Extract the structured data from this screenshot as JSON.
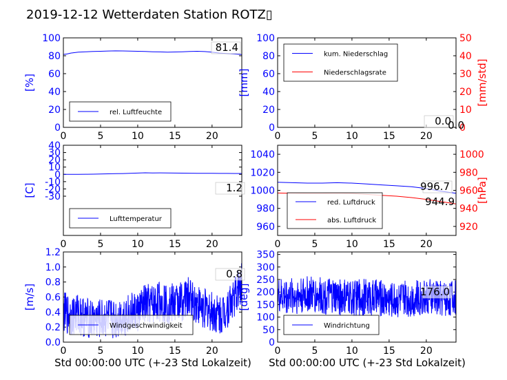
{
  "title": "2019-12-12 Wetterdaten Station ROTZ▯",
  "colors": {
    "primary": "#0000ff",
    "secondary": "#ff0000"
  },
  "xlabel": "Std 00:00:00 UTC (+-23 Std Lokalzeit)",
  "chart_data": [
    {
      "id": "humidity",
      "type": "line",
      "xlim": [
        0,
        24
      ],
      "xticks": [
        0,
        5,
        10,
        15,
        20
      ],
      "ylim": [
        0,
        100
      ],
      "yticks": [
        0,
        20,
        40,
        60,
        80,
        100
      ],
      "ylabel": "[%]",
      "series": [
        {
          "name": "rel. Luftfeuchte",
          "color": "#0000ff",
          "x": [
            0,
            0.5,
            1,
            2,
            3,
            4,
            5,
            6,
            7,
            8,
            9,
            10,
            11,
            12,
            13,
            14,
            15,
            16,
            17,
            18,
            19,
            20,
            21,
            22,
            23,
            24
          ],
          "y": [
            81.5,
            82,
            83,
            84,
            84.5,
            84.8,
            85,
            85.3,
            85.5,
            85.4,
            85.2,
            85,
            84.8,
            84.5,
            84.3,
            84,
            84.2,
            84.5,
            84.8,
            85,
            84.7,
            84,
            83,
            82.5,
            82,
            81.4
          ]
        }
      ],
      "annotation": "81.4"
    },
    {
      "id": "precip",
      "type": "line",
      "xlim": [
        0,
        24
      ],
      "xticks": [
        0,
        5,
        10,
        15,
        20
      ],
      "ylim": [
        0,
        100
      ],
      "yticks": [
        0,
        20,
        40,
        60,
        80,
        100
      ],
      "ylabel": "[mm]",
      "y2lim": [
        0,
        50
      ],
      "y2ticks": [
        0,
        10,
        20,
        30,
        40,
        50
      ],
      "y2label": "[mm/std]",
      "series": [
        {
          "name": "kum. Niederschlag",
          "color": "#0000ff",
          "axis": "left",
          "x": [
            0,
            24
          ],
          "y": [
            0,
            0
          ]
        },
        {
          "name": "Niederschlagsrate",
          "color": "#ff0000",
          "axis": "right",
          "x": [
            0,
            24
          ],
          "y": [
            0,
            0
          ]
        }
      ],
      "annotation": "0.0",
      "annotation2": "0.0"
    },
    {
      "id": "temperature",
      "type": "line",
      "xlim": [
        0,
        24
      ],
      "xticks": [
        0,
        5,
        10,
        15,
        20
      ],
      "ylim": [
        -30,
        40
      ],
      "yticks": [
        -30,
        -20,
        -10,
        0,
        10,
        20,
        30,
        40
      ],
      "ylabel": "[C]",
      "series": [
        {
          "name": "Lufttemperatur",
          "color": "#0000ff",
          "x": [
            0,
            1,
            2,
            3,
            4,
            5,
            6,
            7,
            8,
            9,
            10,
            11,
            12,
            13,
            14,
            15,
            16,
            17,
            18,
            19,
            20,
            21,
            22,
            23,
            24
          ],
          "y": [
            0,
            0,
            0.1,
            0.2,
            0.3,
            0.5,
            0.7,
            0.9,
            1.1,
            1.4,
            1.8,
            2.2,
            2.0,
            2.1,
            2.0,
            1.8,
            1.7,
            1.6,
            1.5,
            1.4,
            1.4,
            1.3,
            1.3,
            1.2,
            1.2
          ]
        }
      ],
      "annotation": "1.2"
    },
    {
      "id": "pressure",
      "type": "line",
      "xlim": [
        0,
        24
      ],
      "xticks": [
        0,
        5,
        10,
        15,
        20
      ],
      "ylim": [
        950,
        1050
      ],
      "yticks": [
        960,
        980,
        1000,
        1020,
        1040
      ],
      "ylabel": "",
      "y2lim": [
        910,
        1010
      ],
      "y2ticks": [
        920,
        940,
        960,
        980,
        1000
      ],
      "y2label": "[hPa]",
      "series": [
        {
          "name": "red. Luftdruck",
          "color": "#0000ff",
          "axis": "left",
          "x": [
            0,
            2,
            4,
            6,
            8,
            10,
            12,
            14,
            16,
            18,
            20,
            22,
            24
          ],
          "y": [
            1009,
            1008.5,
            1008,
            1008,
            1008.5,
            1008,
            1007,
            1006,
            1005,
            1004,
            1002,
            999,
            996.7
          ]
        },
        {
          "name": "abs. Luftdruck",
          "color": "#ff0000",
          "axis": "right",
          "x": [
            0,
            2,
            4,
            6,
            8,
            10,
            12,
            14,
            16,
            18,
            20,
            22,
            24
          ],
          "y": [
            957,
            956.8,
            956.5,
            956.5,
            956.8,
            956.5,
            955.5,
            954.5,
            953.5,
            952,
            950,
            947.5,
            944.9
          ]
        }
      ],
      "annotation": "996.7",
      "annotation2": "944.9"
    },
    {
      "id": "wind_speed",
      "type": "line",
      "xlim": [
        0,
        24
      ],
      "xticks": [
        0,
        5,
        10,
        15,
        20
      ],
      "ylim": [
        0,
        1.2
      ],
      "yticks": [
        0,
        0.2,
        0.4,
        0.6,
        0.8,
        1.0,
        1.2
      ],
      "ylabel": "[m/s]",
      "series": [
        {
          "name": "Windgeschwindigkeit",
          "color": "#0000ff",
          "x": [
            0,
            1,
            2,
            3,
            4,
            5,
            6,
            7,
            8,
            9,
            10,
            11,
            12,
            13,
            14,
            15,
            16,
            17,
            18,
            19,
            20,
            21,
            22,
            23,
            24
          ],
          "y": [
            0.4,
            0.35,
            0.38,
            0.32,
            0.3,
            0.3,
            0.32,
            0.3,
            0.35,
            0.38,
            0.4,
            0.5,
            0.5,
            0.55,
            0.5,
            0.52,
            0.55,
            0.6,
            0.5,
            0.45,
            0.4,
            0.35,
            0.45,
            0.6,
            0.8
          ],
          "min": 0.05,
          "max": 1.05
        }
      ],
      "annotation": "0.8"
    },
    {
      "id": "wind_dir",
      "type": "line",
      "xlim": [
        0,
        24
      ],
      "xticks": [
        0,
        5,
        10,
        15,
        20
      ],
      "ylim": [
        0,
        360
      ],
      "yticks": [
        0,
        50,
        100,
        150,
        200,
        250,
        300,
        350
      ],
      "ylabel": "[deg]",
      "series": [
        {
          "name": "Windrichtung",
          "color": "#0000ff",
          "x": [
            0,
            2,
            4,
            6,
            8,
            10,
            12,
            14,
            16,
            18,
            20,
            22,
            24
          ],
          "y": [
            180,
            185,
            190,
            185,
            180,
            175,
            180,
            175,
            170,
            175,
            180,
            178,
            176
          ],
          "min": 60,
          "max": 330
        }
      ],
      "annotation": "176.0"
    }
  ]
}
